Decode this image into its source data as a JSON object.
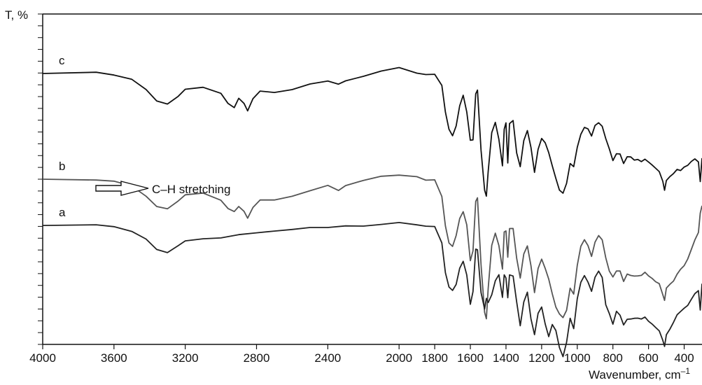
{
  "chart_data": {
    "type": "line",
    "xlabel": "Wavenumber, cm",
    "xlabel_superscript": "–1",
    "ylabel": "T, %",
    "xlim": [
      4000,
      300
    ],
    "x_reversed": true,
    "xticks": [
      4000,
      3600,
      3200,
      2800,
      2400,
      2000,
      1800,
      1600,
      1400,
      1200,
      1000,
      800,
      600,
      400
    ],
    "y_tick_labels_shown": false,
    "grid": false,
    "legend": "none",
    "annotation": {
      "text": "C–H stretching",
      "arrow_direction": "right"
    },
    "series": [
      {
        "name": "c",
        "color": "#111111",
        "offset": 0.82,
        "x": [
          4000,
          3700,
          3600,
          3500,
          3420,
          3360,
          3300,
          3240,
          3200,
          3100,
          3000,
          2960,
          2925,
          2900,
          2870,
          2850,
          2820,
          2780,
          2700,
          2600,
          2500,
          2400,
          2340,
          2300,
          2200,
          2100,
          2000,
          1900,
          1850,
          1800,
          1760,
          1740,
          1720,
          1700,
          1680,
          1660,
          1640,
          1620,
          1600,
          1585,
          1570,
          1560,
          1540,
          1520,
          1510,
          1500,
          1480,
          1460,
          1440,
          1420,
          1410,
          1400,
          1390,
          1380,
          1360,
          1340,
          1320,
          1300,
          1280,
          1260,
          1240,
          1220,
          1200,
          1180,
          1160,
          1140,
          1120,
          1100,
          1080,
          1060,
          1040,
          1020,
          1000,
          980,
          960,
          940,
          920,
          900,
          880,
          860,
          840,
          820,
          800,
          780,
          760,
          740,
          720,
          700,
          680,
          660,
          640,
          620,
          600,
          580,
          560,
          540,
          520,
          510,
          500,
          480,
          460,
          440,
          420,
          400,
          380,
          360,
          340,
          320,
          310,
          300
        ],
        "y": [
          0,
          0,
          -0.005,
          -0.02,
          -0.05,
          -0.085,
          -0.095,
          -0.07,
          -0.045,
          -0.04,
          -0.06,
          -0.09,
          -0.1,
          -0.075,
          -0.09,
          -0.115,
          -0.08,
          -0.055,
          -0.06,
          -0.05,
          -0.035,
          -0.025,
          -0.035,
          -0.02,
          -0.005,
          0.01,
          0.02,
          0.005,
          0,
          0,
          -0.04,
          -0.12,
          -0.17,
          -0.19,
          -0.16,
          -0.1,
          -0.07,
          -0.12,
          -0.2,
          -0.2,
          -0.06,
          -0.05,
          -0.23,
          -0.35,
          -0.37,
          -0.3,
          -0.18,
          -0.15,
          -0.2,
          -0.28,
          -0.17,
          -0.15,
          -0.27,
          -0.15,
          -0.14,
          -0.24,
          -0.28,
          -0.2,
          -0.17,
          -0.22,
          -0.3,
          -0.23,
          -0.2,
          -0.21,
          -0.24,
          -0.28,
          -0.32,
          -0.35,
          -0.36,
          -0.33,
          -0.27,
          -0.28,
          -0.22,
          -0.18,
          -0.16,
          -0.17,
          -0.19,
          -0.16,
          -0.15,
          -0.16,
          -0.2,
          -0.23,
          -0.26,
          -0.24,
          -0.24,
          -0.27,
          -0.25,
          -0.25,
          -0.26,
          -0.26,
          -0.27,
          -0.26,
          -0.27,
          -0.28,
          -0.29,
          -0.3,
          -0.33,
          -0.35,
          -0.32,
          -0.31,
          -0.3,
          -0.29,
          -0.29,
          -0.28,
          -0.28,
          -0.27,
          -0.26,
          -0.27,
          -0.33,
          -0.26
        ]
      },
      {
        "name": "b",
        "color": "#555555",
        "offset": 0.5,
        "x": [
          4000,
          3700,
          3600,
          3500,
          3420,
          3360,
          3300,
          3240,
          3200,
          3100,
          3000,
          2960,
          2925,
          2900,
          2870,
          2850,
          2820,
          2780,
          2700,
          2600,
          2500,
          2400,
          2340,
          2300,
          2200,
          2100,
          2000,
          1900,
          1850,
          1800,
          1760,
          1740,
          1720,
          1700,
          1680,
          1660,
          1640,
          1620,
          1600,
          1585,
          1570,
          1560,
          1540,
          1520,
          1510,
          1500,
          1480,
          1460,
          1440,
          1420,
          1410,
          1400,
          1390,
          1380,
          1360,
          1340,
          1320,
          1300,
          1280,
          1260,
          1240,
          1220,
          1200,
          1180,
          1160,
          1140,
          1120,
          1100,
          1080,
          1060,
          1040,
          1020,
          1000,
          980,
          960,
          940,
          920,
          900,
          880,
          860,
          840,
          820,
          800,
          780,
          760,
          740,
          720,
          700,
          680,
          660,
          640,
          620,
          600,
          580,
          560,
          540,
          520,
          510,
          500,
          480,
          460,
          440,
          420,
          400,
          380,
          360,
          340,
          320,
          310,
          300
        ],
        "y": [
          0,
          0,
          -0.005,
          -0.02,
          -0.05,
          -0.08,
          -0.09,
          -0.07,
          -0.05,
          -0.045,
          -0.065,
          -0.09,
          -0.1,
          -0.08,
          -0.095,
          -0.115,
          -0.085,
          -0.06,
          -0.06,
          -0.05,
          -0.035,
          -0.02,
          -0.035,
          -0.02,
          -0.005,
          0.005,
          0.01,
          0.005,
          0,
          0,
          -0.05,
          -0.14,
          -0.19,
          -0.2,
          -0.17,
          -0.12,
          -0.1,
          -0.14,
          -0.25,
          -0.22,
          -0.07,
          -0.06,
          -0.26,
          -0.4,
          -0.42,
          -0.33,
          -0.2,
          -0.16,
          -0.2,
          -0.27,
          -0.16,
          -0.16,
          -0.24,
          -0.15,
          -0.15,
          -0.24,
          -0.3,
          -0.23,
          -0.2,
          -0.26,
          -0.34,
          -0.27,
          -0.24,
          -0.27,
          -0.3,
          -0.35,
          -0.39,
          -0.41,
          -0.42,
          -0.4,
          -0.33,
          -0.35,
          -0.26,
          -0.2,
          -0.18,
          -0.2,
          -0.23,
          -0.19,
          -0.17,
          -0.18,
          -0.24,
          -0.28,
          -0.3,
          -0.28,
          -0.28,
          -0.31,
          -0.29,
          -0.29,
          -0.29,
          -0.29,
          -0.29,
          -0.28,
          -0.29,
          -0.3,
          -0.31,
          -0.32,
          -0.35,
          -0.37,
          -0.33,
          -0.32,
          -0.31,
          -0.29,
          -0.27,
          -0.26,
          -0.24,
          -0.21,
          -0.18,
          -0.16,
          -0.1,
          -0.08
        ]
      },
      {
        "name": "a",
        "color": "#222222",
        "offset": 0.36,
        "x": [
          4000,
          3700,
          3600,
          3500,
          3420,
          3360,
          3300,
          3240,
          3200,
          3100,
          3000,
          2900,
          2800,
          2700,
          2600,
          2500,
          2400,
          2300,
          2200,
          2100,
          2000,
          1900,
          1850,
          1800,
          1760,
          1740,
          1720,
          1700,
          1680,
          1660,
          1640,
          1620,
          1600,
          1585,
          1570,
          1560,
          1540,
          1520,
          1510,
          1500,
          1480,
          1460,
          1440,
          1420,
          1410,
          1400,
          1390,
          1380,
          1360,
          1340,
          1320,
          1300,
          1280,
          1260,
          1240,
          1220,
          1200,
          1180,
          1160,
          1140,
          1120,
          1100,
          1080,
          1060,
          1040,
          1020,
          1000,
          980,
          960,
          940,
          920,
          900,
          880,
          860,
          840,
          820,
          800,
          780,
          760,
          740,
          720,
          700,
          680,
          660,
          640,
          620,
          600,
          580,
          560,
          540,
          520,
          510,
          500,
          480,
          460,
          440,
          420,
          400,
          380,
          360,
          340,
          320,
          310,
          300
        ],
        "y": [
          0,
          0,
          -0.005,
          -0.015,
          -0.04,
          -0.07,
          -0.08,
          -0.06,
          -0.045,
          -0.04,
          -0.035,
          -0.03,
          -0.025,
          -0.02,
          -0.015,
          -0.01,
          -0.01,
          -0.005,
          0,
          0.005,
          0.01,
          0.005,
          0,
          0,
          -0.05,
          -0.14,
          -0.19,
          -0.2,
          -0.18,
          -0.13,
          -0.11,
          -0.15,
          -0.24,
          -0.2,
          -0.07,
          -0.07,
          -0.2,
          -0.25,
          -0.22,
          -0.23,
          -0.21,
          -0.17,
          -0.15,
          -0.22,
          -0.15,
          -0.16,
          -0.22,
          -0.15,
          -0.15,
          -0.23,
          -0.3,
          -0.23,
          -0.2,
          -0.28,
          -0.33,
          -0.27,
          -0.25,
          -0.3,
          -0.34,
          -0.3,
          -0.32,
          -0.37,
          -0.4,
          -0.35,
          -0.28,
          -0.31,
          -0.22,
          -0.17,
          -0.15,
          -0.17,
          -0.2,
          -0.16,
          -0.14,
          -0.16,
          -0.24,
          -0.27,
          -0.3,
          -0.26,
          -0.27,
          -0.3,
          -0.28,
          -0.28,
          -0.28,
          -0.28,
          -0.28,
          -0.28,
          -0.29,
          -0.3,
          -0.31,
          -0.32,
          -0.35,
          -0.37,
          -0.33,
          -0.31,
          -0.29,
          -0.27,
          -0.26,
          -0.25,
          -0.24,
          -0.22,
          -0.21,
          -0.2,
          -0.26,
          -0.18
        ]
      }
    ]
  }
}
